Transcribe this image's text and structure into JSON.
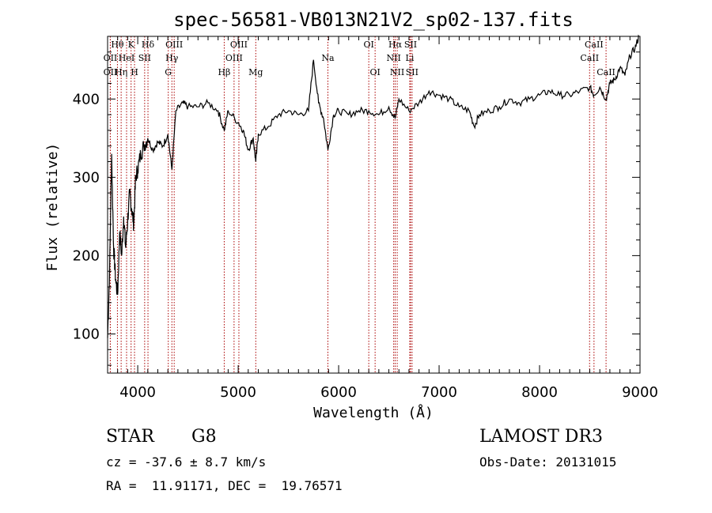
{
  "chart_data": {
    "type": "line",
    "title": "spec-56581-VB013N21V2_sp02-137.fits",
    "xlabel": "Wavelength (Å)",
    "ylabel": "Flux (relative)",
    "xlim": [
      3700,
      9000
    ],
    "ylim": [
      50,
      480
    ],
    "xticks": [
      4000,
      5000,
      6000,
      7000,
      8000,
      9000
    ],
    "yticks": [
      100,
      200,
      300,
      400
    ],
    "series": [
      {
        "name": "flux",
        "x": [
          3700,
          3720,
          3740,
          3760,
          3780,
          3800,
          3820,
          3840,
          3860,
          3880,
          3900,
          3920,
          3940,
          3960,
          3980,
          4000,
          4030,
          4060,
          4100,
          4150,
          4200,
          4250,
          4300,
          4340,
          4380,
          4450,
          4500,
          4600,
          4700,
          4800,
          4861,
          4900,
          5000,
          5050,
          5100,
          5150,
          5175,
          5200,
          5300,
          5400,
          5500,
          5600,
          5700,
          5750,
          5800,
          5850,
          5893,
          5950,
          6000,
          6100,
          6200,
          6300,
          6400,
          6500,
          6563,
          6600,
          6700,
          6800,
          6900,
          7000,
          7100,
          7200,
          7300,
          7350,
          7400,
          7500,
          7600,
          7700,
          7800,
          7900,
          8000,
          8100,
          8200,
          8300,
          8400,
          8500,
          8542,
          8600,
          8662,
          8700,
          8750,
          8800,
          8850,
          8900,
          8950,
          8990
        ],
        "y": [
          95,
          180,
          330,
          210,
          170,
          150,
          230,
          200,
          250,
          210,
          245,
          280,
          260,
          240,
          300,
          310,
          330,
          340,
          350,
          335,
          345,
          340,
          355,
          310,
          385,
          395,
          390,
          390,
          395,
          385,
          360,
          385,
          370,
          360,
          335,
          350,
          320,
          355,
          365,
          380,
          385,
          380,
          385,
          450,
          395,
          375,
          335,
          380,
          385,
          380,
          385,
          385,
          380,
          390,
          375,
          400,
          385,
          395,
          410,
          405,
          400,
          390,
          385,
          365,
          380,
          385,
          390,
          400,
          395,
          400,
          405,
          410,
          405,
          405,
          410,
          415,
          405,
          415,
          400,
          420,
          425,
          440,
          430,
          455,
          465,
          480
        ]
      }
    ],
    "lines": [
      {
        "name": "OII",
        "wave": 3727,
        "row": 2
      },
      {
        "name": "OII",
        "wave": 3727,
        "row": 1
      },
      {
        "name": "Hθ",
        "wave": 3798,
        "row": 0
      },
      {
        "name": "Hη",
        "wave": 3835,
        "row": 2
      },
      {
        "name": "HeI",
        "wave": 3889,
        "row": 1
      },
      {
        "name": "K",
        "wave": 3934,
        "row": 0
      },
      {
        "name": "H",
        "wave": 3968,
        "row": 2
      },
      {
        "name": "SII",
        "wave": 4069,
        "row": 1
      },
      {
        "name": "Hδ",
        "wave": 4102,
        "row": 0
      },
      {
        "name": "G",
        "wave": 4304,
        "row": 2
      },
      {
        "name": "Hγ",
        "wave": 4340,
        "row": 1
      },
      {
        "name": "OIII",
        "wave": 4363,
        "row": 0
      },
      {
        "name": "Hβ",
        "wave": 4861,
        "row": 2
      },
      {
        "name": "OIII",
        "wave": 4959,
        "row": 1
      },
      {
        "name": "OIII",
        "wave": 5007,
        "row": 0
      },
      {
        "name": "Mg",
        "wave": 5175,
        "row": 2
      },
      {
        "name": "Na",
        "wave": 5893,
        "row": 1
      },
      {
        "name": "OI",
        "wave": 6300,
        "row": 0
      },
      {
        "name": "OI",
        "wave": 6363,
        "row": 2
      },
      {
        "name": "NII",
        "wave": 6548,
        "row": 1
      },
      {
        "name": "Hα",
        "wave": 6563,
        "row": 0
      },
      {
        "name": "NII",
        "wave": 6583,
        "row": 2
      },
      {
        "name": "Li",
        "wave": 6708,
        "row": 1
      },
      {
        "name": "SII",
        "wave": 6716,
        "row": 0
      },
      {
        "name": "SII",
        "wave": 6731,
        "row": 2
      },
      {
        "name": "CaII",
        "wave": 8498,
        "row": 1
      },
      {
        "name": "CaII",
        "wave": 8542,
        "row": 0
      },
      {
        "name": "CaII",
        "wave": 8662,
        "row": 2
      }
    ]
  },
  "info": {
    "object_class": "STAR",
    "subclass": "G8",
    "survey": "LAMOST DR3",
    "cz": "cz = -37.6 ± 8.7 km/s",
    "obs_date": "Obs-Date: 20131015",
    "coords": "RA =  11.91171, DEC =  19.76571"
  },
  "colors": {
    "line_marker": "#aa0000",
    "spectrum": "#000000"
  }
}
